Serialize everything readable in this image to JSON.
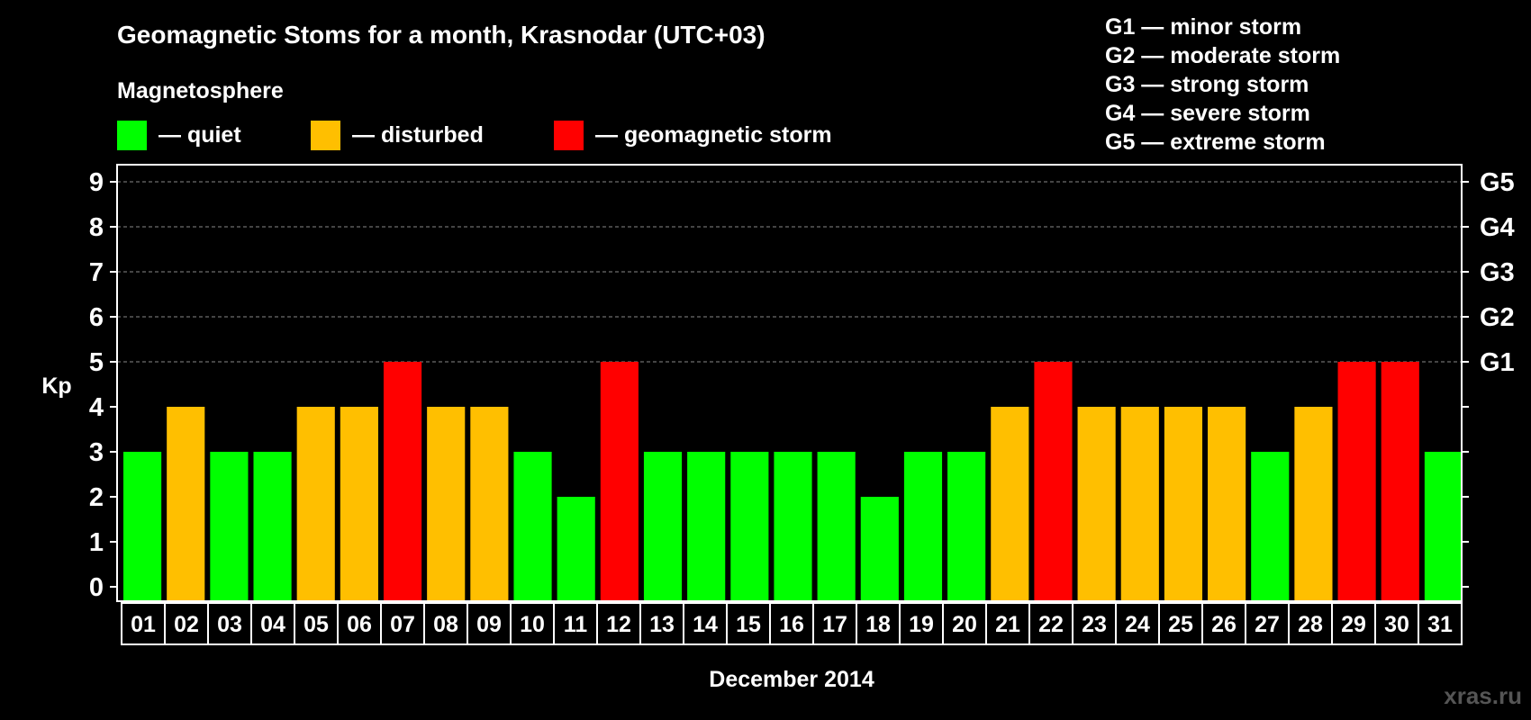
{
  "chart_data": {
    "type": "bar",
    "title": "Geomagnetic Stoms for a month, Krasnodar (UTC+03)",
    "legend_title": "Magnetosphere",
    "legend": [
      {
        "label": "— quiet",
        "color": "#00ff00"
      },
      {
        "label": "— disturbed",
        "color": "#ffbf00"
      },
      {
        "label": "— geomagnetic storm",
        "color": "#ff0000"
      }
    ],
    "storm_scale": [
      "G1 — minor storm",
      "G2 — moderate storm",
      "G3 — strong storm",
      "G4 — severe storm",
      "G5 — extreme storm"
    ],
    "ylabel": "Kp",
    "xlabel": "December 2014",
    "ylim": [
      0,
      9
    ],
    "yticks": [
      "0",
      "1",
      "2",
      "3",
      "4",
      "5",
      "6",
      "7",
      "8",
      "9"
    ],
    "right_axis_labels": [
      {
        "kp": 5,
        "label": "G1"
      },
      {
        "kp": 6,
        "label": "G2"
      },
      {
        "kp": 7,
        "label": "G3"
      },
      {
        "kp": 8,
        "label": "G4"
      },
      {
        "kp": 9,
        "label": "G5"
      }
    ],
    "grid_lines_at": [
      5,
      6,
      7,
      8,
      9
    ],
    "categories": [
      "01",
      "02",
      "03",
      "04",
      "05",
      "06",
      "07",
      "08",
      "09",
      "10",
      "11",
      "12",
      "13",
      "14",
      "15",
      "16",
      "17",
      "18",
      "19",
      "20",
      "21",
      "22",
      "23",
      "24",
      "25",
      "26",
      "27",
      "28",
      "29",
      "30",
      "31"
    ],
    "values": [
      3,
      4,
      3,
      3,
      4,
      4,
      5,
      4,
      4,
      3,
      2,
      5,
      3,
      3,
      3,
      3,
      3,
      2,
      3,
      3,
      4,
      5,
      4,
      4,
      4,
      4,
      3,
      4,
      5,
      5,
      3
    ],
    "colors": {
      "quiet": "#00ff00",
      "disturbed": "#ffbf00",
      "storm": "#ff0000"
    }
  },
  "watermark": "xras.ru"
}
